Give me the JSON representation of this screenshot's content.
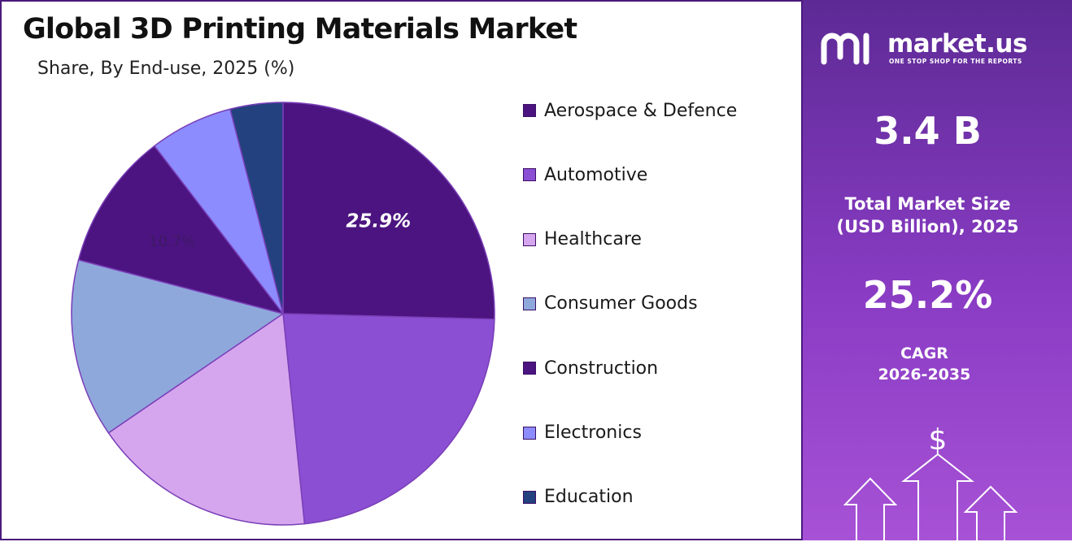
{
  "header": {
    "title": "Global 3D Printing Materials Market",
    "subtitle": "Share, By End-use, 2025 (%)"
  },
  "chart_data": {
    "type": "pie",
    "title": "Global 3D Printing Materials Market",
    "subtitle": "Share, By End-use, 2025 (%)",
    "categories": [
      "Aerospace & Defence",
      "Automotive",
      "Healthcare",
      "Consumer Goods",
      "Construction",
      "Electronics",
      "Education"
    ],
    "values": [
      25.9,
      23.4,
      17.4,
      13.9,
      10.7,
      6.5,
      4.1
    ],
    "colors": [
      "#4c1480",
      "#8b4fd3",
      "#d5a6ed",
      "#8fa8dc",
      "#4c1480",
      "#8c8cff",
      "#23417e"
    ],
    "data_labels": [
      {
        "index": 0,
        "text": "25.9%"
      },
      {
        "index": 4,
        "text": "10.7%"
      }
    ],
    "legend_position": "right"
  },
  "brand": {
    "name": "market.us",
    "tagline": "ONE STOP SHOP FOR THE REPORTS"
  },
  "kpis": {
    "market_size_value": "3.4 B",
    "market_size_label_line1": "Total Market Size",
    "market_size_label_line2": "(USD Billion), 2025",
    "cagr_value": "25.2%",
    "cagr_label_line1": "CAGR",
    "cagr_label_line2": "2026-2035"
  },
  "decoration": {
    "currency_symbol": "$",
    "icon": "growth-arrows-icon"
  }
}
